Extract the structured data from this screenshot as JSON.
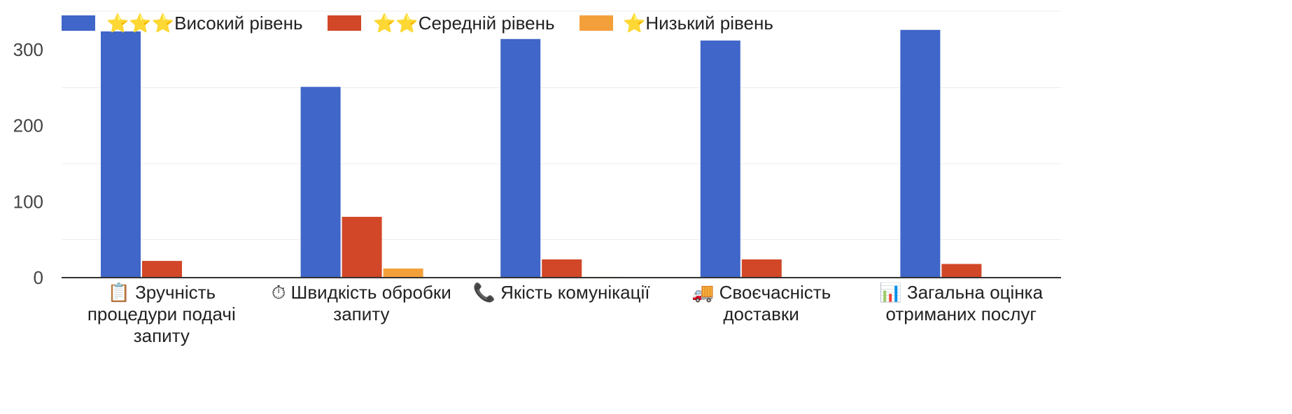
{
  "chart_data": {
    "type": "bar",
    "title": "",
    "xlabel": "",
    "ylabel": "",
    "ylim": [
      0,
      340
    ],
    "yticks": [
      0,
      100,
      200,
      300
    ],
    "grid": true,
    "legend_position": "top-left",
    "categories": [
      {
        "icon": "📋",
        "lines": [
          "Зручність",
          "процедури подачі",
          "запиту"
        ]
      },
      {
        "icon": "⏱",
        "lines": [
          "Швидкість обробки",
          "запиту"
        ]
      },
      {
        "icon": "📞",
        "lines": [
          "Якість комунікації"
        ]
      },
      {
        "icon": "🚚",
        "lines": [
          "Своєчасність",
          "доставки"
        ]
      },
      {
        "icon": "📊",
        "lines": [
          "Загальна оцінка",
          "отриманих послуг"
        ]
      }
    ],
    "series": [
      {
        "name": "⭐⭐⭐Високий рівень",
        "color": "#3f66c8",
        "values": [
          324,
          251,
          314,
          312,
          326
        ]
      },
      {
        "name": "⭐⭐Середній рівень",
        "color": "#d14727",
        "values": [
          22,
          80,
          24,
          24,
          18
        ]
      },
      {
        "name": "⭐Низький рівень",
        "color": "#f4a03a",
        "values": [
          0,
          12,
          1,
          0,
          0
        ]
      }
    ]
  }
}
